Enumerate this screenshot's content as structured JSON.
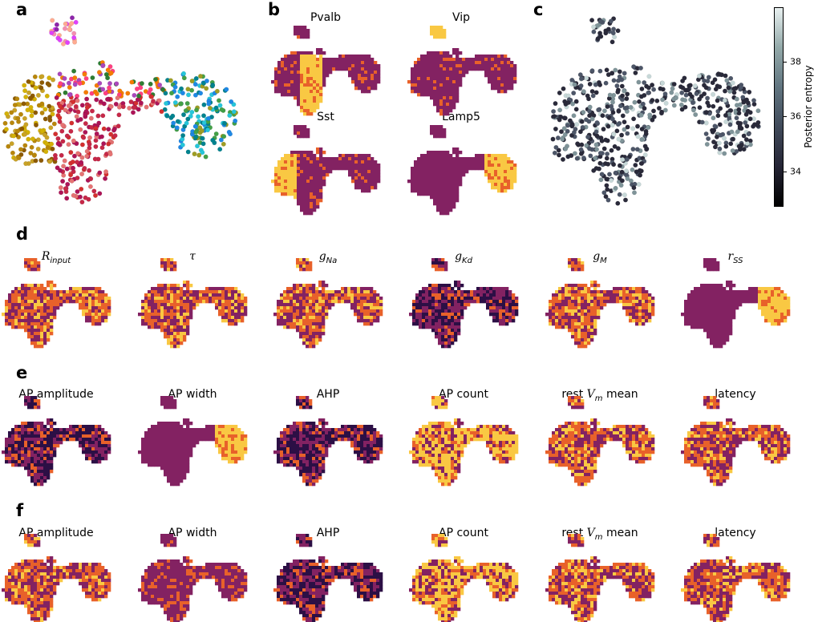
{
  "panel_labels": {
    "a": "a",
    "b": "b",
    "c": "c",
    "d": "d",
    "e": "e",
    "f": "f"
  },
  "panel_b_titles": [
    "Pvalb",
    "Vip",
    "Sst",
    "Lamp5"
  ],
  "panel_d_titles": [
    {
      "base": "R",
      "sub": "input"
    },
    {
      "base": "τ",
      "sub": ""
    },
    {
      "base": "g",
      "sub": "Na"
    },
    {
      "base": "g",
      "sub": "Kd"
    },
    {
      "base": "g",
      "sub": "M"
    },
    {
      "base": "r",
      "sub": "SS"
    }
  ],
  "panel_e_titles": [
    "AP amplitude",
    "AP width",
    "AHP",
    "AP count",
    "rest V_m mean",
    "latency"
  ],
  "panel_f_titles": [
    "AP amplitude",
    "AP width",
    "AHP",
    "AP count",
    "rest V_m mean",
    "latency"
  ],
  "rest_vm": {
    "prefix": "rest ",
    "v": "V",
    "m": "m",
    "suffix": " mean"
  },
  "colorbar": {
    "label": "Posterior entropy",
    "ticks": [
      "34",
      "36",
      "38"
    ],
    "tick_values": [
      34,
      36,
      38
    ],
    "range": [
      32.7,
      40.0
    ]
  },
  "colors": {
    "low": "#2c0f45",
    "mid": "#832262",
    "high": "#f9c843",
    "orange": "#e8612a"
  }
}
